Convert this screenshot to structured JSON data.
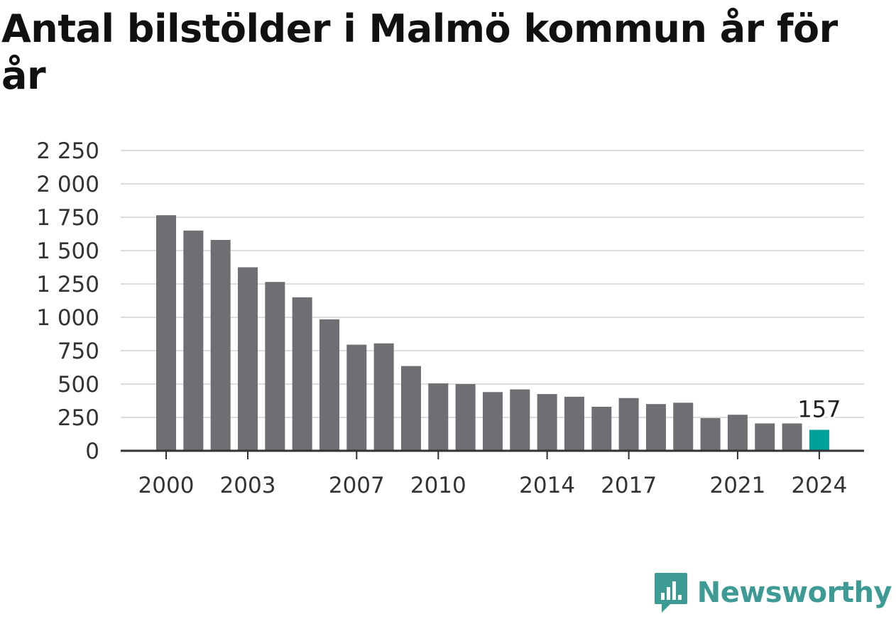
{
  "title": "Antal bilstölder i Malmö kommun år för år",
  "brand": {
    "name": "Newsworthy",
    "color": "#3d9a94",
    "icon": "newsworthy-chart-bubble-icon"
  },
  "colors": {
    "bar": "#6e6e73",
    "highlight": "#00a19a",
    "grid": "#dddddd",
    "axis": "#333333"
  },
  "chart_data": {
    "type": "bar",
    "categories": [
      "2000",
      "2001",
      "2002",
      "2003",
      "2004",
      "2005",
      "2006",
      "2007",
      "2008",
      "2009",
      "2010",
      "2011",
      "2012",
      "2013",
      "2014",
      "2015",
      "2016",
      "2017",
      "2018",
      "2019",
      "2020",
      "2021",
      "2022",
      "2023",
      "2024"
    ],
    "values": [
      1765,
      1650,
      1580,
      1375,
      1265,
      1150,
      985,
      795,
      805,
      635,
      505,
      500,
      440,
      460,
      425,
      405,
      330,
      395,
      350,
      360,
      245,
      270,
      205,
      205,
      157
    ],
    "x_tick_labels": [
      "2000",
      "2003",
      "2007",
      "2010",
      "2014",
      "2017",
      "2021",
      "2024"
    ],
    "y_ticks": [
      0,
      250,
      500,
      750,
      1000,
      1250,
      1500,
      1750,
      2000,
      2250
    ],
    "y_tick_labels": [
      "0",
      "250",
      "500",
      "750",
      "1 000",
      "1 250",
      "1 500",
      "1 750",
      "2 000",
      "2 250"
    ],
    "ylim": [
      0,
      2250
    ],
    "highlight_index": 24,
    "annotation": {
      "category": "2024",
      "text": "157"
    },
    "grid": true,
    "legend": "none",
    "xlabel": "",
    "ylabel": ""
  }
}
